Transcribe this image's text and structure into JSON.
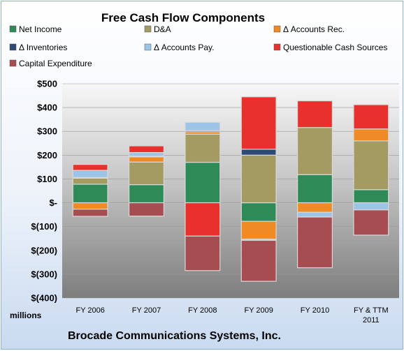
{
  "chart_data": {
    "type": "bar",
    "stacked": true,
    "title": "Free Cash Flow Components",
    "subtitle": "Brocade Communications Systems, Inc.",
    "ylabel": "millions",
    "ylim": [
      -400,
      500
    ],
    "yticks": [
      500,
      400,
      300,
      200,
      100,
      0,
      -100,
      -200,
      -300,
      -400
    ],
    "ytick_labels": [
      "$500",
      "$400",
      "$300",
      "$200",
      "$100",
      "$-",
      "$(100)",
      "$(200)",
      "$(300)",
      "$(400)"
    ],
    "categories": [
      "FY 2006",
      "FY 2007",
      "FY 2008",
      "FY 2009",
      "FY 2010",
      "FY & TTM 2011"
    ],
    "legend_position": "top",
    "series": [
      {
        "name": "Net Income",
        "color": "#2e8b57",
        "values": [
          78,
          76,
          170,
          -78,
          118,
          55
        ]
      },
      {
        "name": "D&A",
        "color": "#a39b62",
        "values": [
          25,
          95,
          118,
          200,
          198,
          205
        ]
      },
      {
        "name": "Δ Accounts Rec.",
        "color": "#f08a24",
        "values": [
          -27,
          22,
          10,
          -75,
          -40,
          50
        ]
      },
      {
        "name": "Δ Inventories",
        "color": "#2c4a73",
        "values": [
          3,
          3,
          5,
          25,
          0,
          0
        ]
      },
      {
        "name": "Δ Accounts Pay.",
        "color": "#9dc3e6",
        "values": [
          30,
          15,
          35,
          -5,
          -20,
          -30
        ]
      },
      {
        "name": "Questionable Cash Sources",
        "color": "#e8302c",
        "values": [
          25,
          28,
          -140,
          220,
          112,
          102
        ]
      },
      {
        "name": "Capital Expenditure",
        "color": "#a64d52",
        "values": [
          -30,
          -56,
          -145,
          -172,
          -213,
          -106
        ]
      }
    ]
  }
}
